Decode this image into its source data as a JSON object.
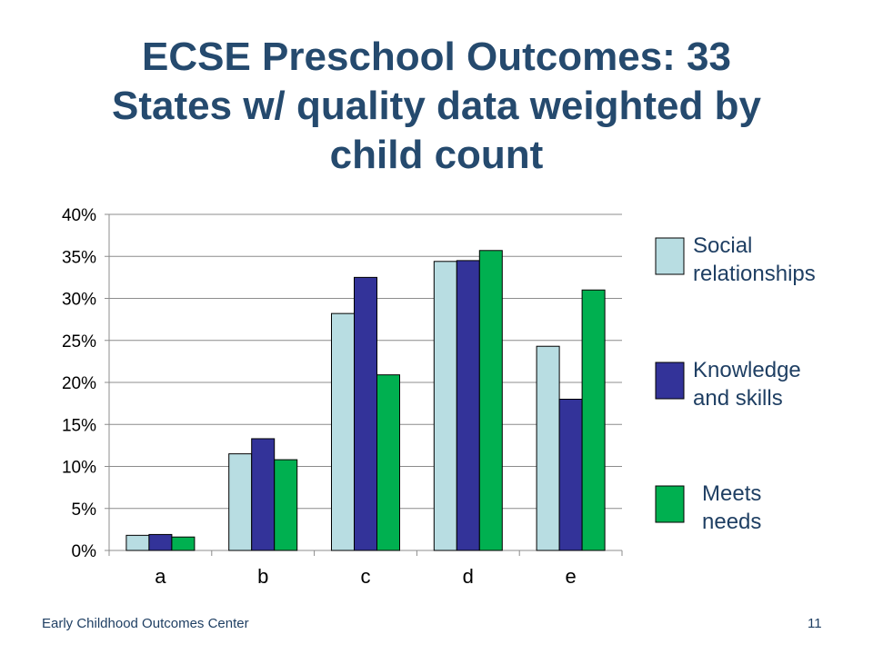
{
  "slide": {
    "title_lines": [
      "ECSE Preschool Outcomes: 33",
      "States w/ quality data weighted by",
      "child count"
    ],
    "footer_left": "Early Childhood Outcomes Center",
    "page_number": "11"
  },
  "chart_data": {
    "type": "bar",
    "title": "ECSE Preschool Outcomes: 33 States w/ quality data weighted by child count",
    "categories": [
      "a",
      "b",
      "c",
      "d",
      "e"
    ],
    "series": [
      {
        "name": "Social relationships",
        "color": "#b8dde2",
        "values": [
          1.8,
          11.5,
          28.2,
          34.4,
          24.3
        ]
      },
      {
        "name": "Knowledge and skills",
        "color": "#333399",
        "values": [
          1.9,
          13.3,
          32.5,
          34.5,
          18.0
        ]
      },
      {
        "name": "Meets needs",
        "color": "#00b050",
        "values": [
          1.6,
          10.8,
          20.9,
          35.7,
          31.0
        ]
      }
    ],
    "ylim": [
      0,
      40
    ],
    "yticks": [
      "0%",
      "5%",
      "10%",
      "15%",
      "20%",
      "25%",
      "30%",
      "35%",
      "40%"
    ],
    "grid": true,
    "legend_position": "right"
  }
}
